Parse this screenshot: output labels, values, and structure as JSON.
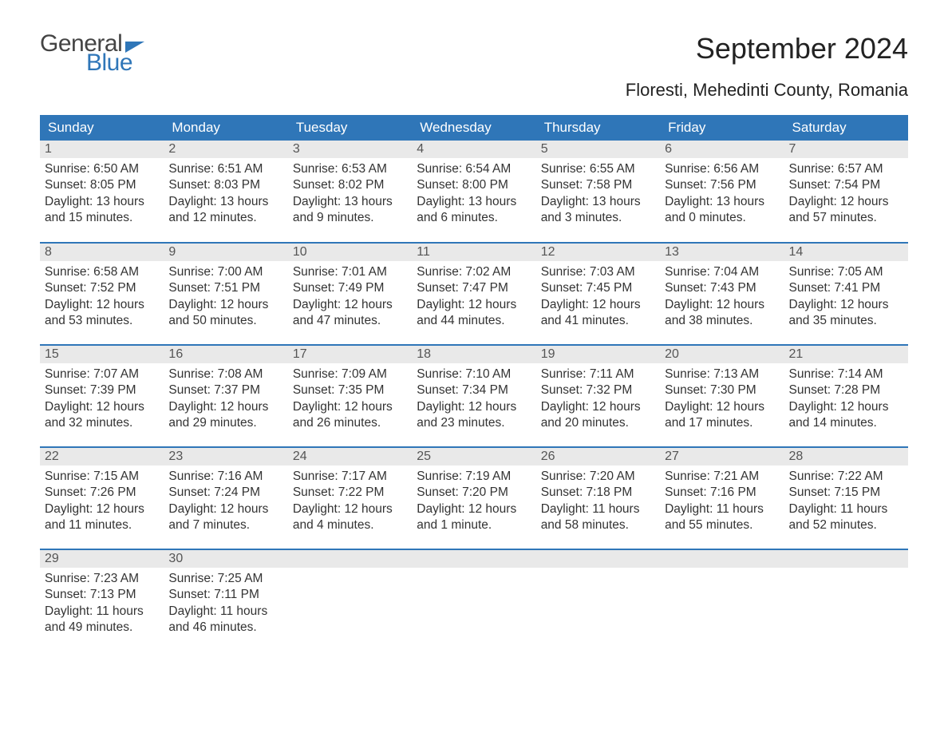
{
  "brand": {
    "word1": "General",
    "word2": "Blue",
    "color": "#2f76b8"
  },
  "title": "September 2024",
  "location": "Floresti, Mehedinti County, Romania",
  "styling": {
    "header_bg": "#2f76b8",
    "header_fg": "#ffffff",
    "daybar_bg": "#e9e9e9",
    "page_bg": "#ffffff",
    "text_color": "#333333",
    "title_fontsize": 36,
    "location_fontsize": 22,
    "cell_fontsize": 15.5
  },
  "weekdays": [
    "Sunday",
    "Monday",
    "Tuesday",
    "Wednesday",
    "Thursday",
    "Friday",
    "Saturday"
  ],
  "labels": {
    "sunrise": "Sunrise",
    "sunset": "Sunset",
    "daylight": "Daylight"
  },
  "days": [
    {
      "n": 1,
      "sunrise": "6:50 AM",
      "sunset": "8:05 PM",
      "dl": "13 hours and 15 minutes."
    },
    {
      "n": 2,
      "sunrise": "6:51 AM",
      "sunset": "8:03 PM",
      "dl": "13 hours and 12 minutes."
    },
    {
      "n": 3,
      "sunrise": "6:53 AM",
      "sunset": "8:02 PM",
      "dl": "13 hours and 9 minutes."
    },
    {
      "n": 4,
      "sunrise": "6:54 AM",
      "sunset": "8:00 PM",
      "dl": "13 hours and 6 minutes."
    },
    {
      "n": 5,
      "sunrise": "6:55 AM",
      "sunset": "7:58 PM",
      "dl": "13 hours and 3 minutes."
    },
    {
      "n": 6,
      "sunrise": "6:56 AM",
      "sunset": "7:56 PM",
      "dl": "13 hours and 0 minutes."
    },
    {
      "n": 7,
      "sunrise": "6:57 AM",
      "sunset": "7:54 PM",
      "dl": "12 hours and 57 minutes."
    },
    {
      "n": 8,
      "sunrise": "6:58 AM",
      "sunset": "7:52 PM",
      "dl": "12 hours and 53 minutes."
    },
    {
      "n": 9,
      "sunrise": "7:00 AM",
      "sunset": "7:51 PM",
      "dl": "12 hours and 50 minutes."
    },
    {
      "n": 10,
      "sunrise": "7:01 AM",
      "sunset": "7:49 PM",
      "dl": "12 hours and 47 minutes."
    },
    {
      "n": 11,
      "sunrise": "7:02 AM",
      "sunset": "7:47 PM",
      "dl": "12 hours and 44 minutes."
    },
    {
      "n": 12,
      "sunrise": "7:03 AM",
      "sunset": "7:45 PM",
      "dl": "12 hours and 41 minutes."
    },
    {
      "n": 13,
      "sunrise": "7:04 AM",
      "sunset": "7:43 PM",
      "dl": "12 hours and 38 minutes."
    },
    {
      "n": 14,
      "sunrise": "7:05 AM",
      "sunset": "7:41 PM",
      "dl": "12 hours and 35 minutes."
    },
    {
      "n": 15,
      "sunrise": "7:07 AM",
      "sunset": "7:39 PM",
      "dl": "12 hours and 32 minutes."
    },
    {
      "n": 16,
      "sunrise": "7:08 AM",
      "sunset": "7:37 PM",
      "dl": "12 hours and 29 minutes."
    },
    {
      "n": 17,
      "sunrise": "7:09 AM",
      "sunset": "7:35 PM",
      "dl": "12 hours and 26 minutes."
    },
    {
      "n": 18,
      "sunrise": "7:10 AM",
      "sunset": "7:34 PM",
      "dl": "12 hours and 23 minutes."
    },
    {
      "n": 19,
      "sunrise": "7:11 AM",
      "sunset": "7:32 PM",
      "dl": "12 hours and 20 minutes."
    },
    {
      "n": 20,
      "sunrise": "7:13 AM",
      "sunset": "7:30 PM",
      "dl": "12 hours and 17 minutes."
    },
    {
      "n": 21,
      "sunrise": "7:14 AM",
      "sunset": "7:28 PM",
      "dl": "12 hours and 14 minutes."
    },
    {
      "n": 22,
      "sunrise": "7:15 AM",
      "sunset": "7:26 PM",
      "dl": "12 hours and 11 minutes."
    },
    {
      "n": 23,
      "sunrise": "7:16 AM",
      "sunset": "7:24 PM",
      "dl": "12 hours and 7 minutes."
    },
    {
      "n": 24,
      "sunrise": "7:17 AM",
      "sunset": "7:22 PM",
      "dl": "12 hours and 4 minutes."
    },
    {
      "n": 25,
      "sunrise": "7:19 AM",
      "sunset": "7:20 PM",
      "dl": "12 hours and 1 minute."
    },
    {
      "n": 26,
      "sunrise": "7:20 AM",
      "sunset": "7:18 PM",
      "dl": "11 hours and 58 minutes."
    },
    {
      "n": 27,
      "sunrise": "7:21 AM",
      "sunset": "7:16 PM",
      "dl": "11 hours and 55 minutes."
    },
    {
      "n": 28,
      "sunrise": "7:22 AM",
      "sunset": "7:15 PM",
      "dl": "11 hours and 52 minutes."
    },
    {
      "n": 29,
      "sunrise": "7:23 AM",
      "sunset": "7:13 PM",
      "dl": "11 hours and 49 minutes."
    },
    {
      "n": 30,
      "sunrise": "7:25 AM",
      "sunset": "7:11 PM",
      "dl": "11 hours and 46 minutes."
    }
  ],
  "grid": {
    "first_weekday_index": 0,
    "weeks": 5,
    "cols": 7
  }
}
